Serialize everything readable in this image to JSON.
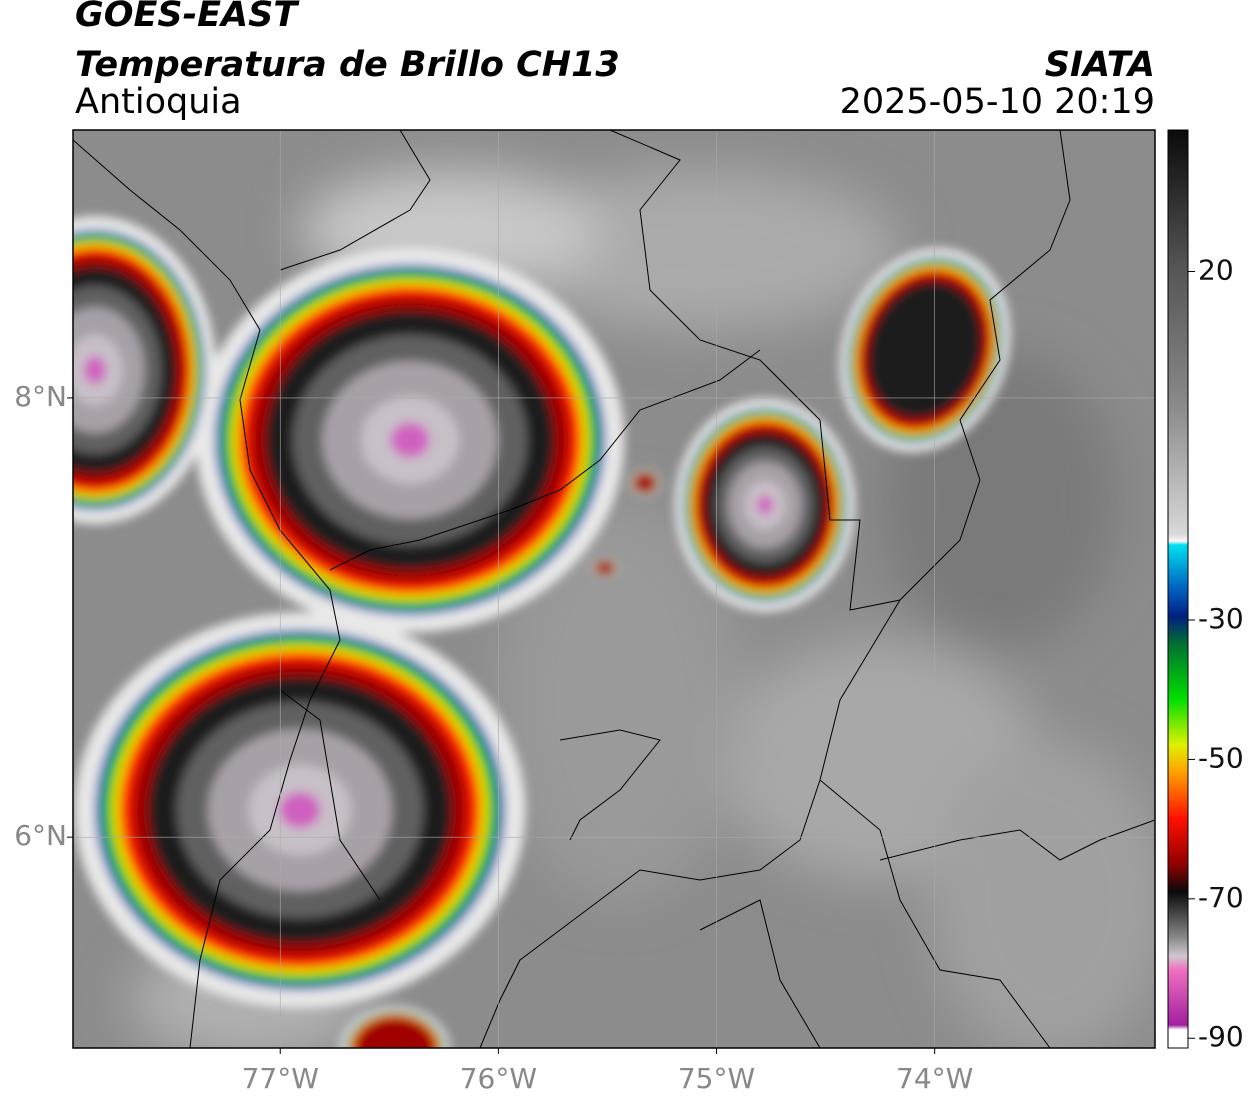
{
  "title": "GOES-EAST",
  "subtitle": "Temperatura de Brillo CH13",
  "region": "Antioquia",
  "source": "SIATA",
  "datetime": "2025-05-10 20:19",
  "map": {
    "xlim": [
      -77.95,
      -72.99
    ],
    "ylim": [
      5.04,
      9.22
    ],
    "xticks": [
      {
        "value": -77,
        "label": "77°W"
      },
      {
        "value": -76,
        "label": "76°W"
      },
      {
        "value": -75,
        "label": "75°W"
      },
      {
        "value": -74,
        "label": "74°W"
      }
    ],
    "yticks": [
      {
        "value": 6,
        "label": "6°N"
      },
      {
        "value": 8,
        "label": "8°N"
      }
    ],
    "grid": true
  },
  "colorbar": {
    "lim": [
      -91.4,
      40.3
    ],
    "ticks": [
      20,
      -30,
      -50,
      -70,
      -90
    ]
  }
}
